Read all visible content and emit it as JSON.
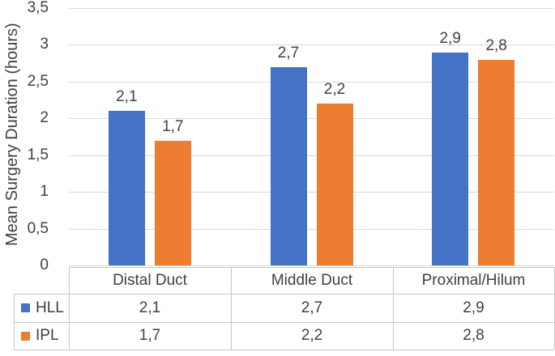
{
  "chart_data": {
    "type": "bar",
    "title": "",
    "xlabel": "",
    "ylabel": "Mean Surgery Duration (hours)",
    "categories": [
      "Distal Duct",
      "Middle Duct",
      "Proximal/Hilum"
    ],
    "series": [
      {
        "name": "HLL",
        "color": "#4472C4",
        "values": [
          2.1,
          2.7,
          2.9
        ]
      },
      {
        "name": "IPL",
        "color": "#ED7D31",
        "values": [
          1.7,
          2.2,
          2.8
        ]
      }
    ],
    "ylim": [
      0,
      3.5
    ],
    "ytick_step": 0.5,
    "ytick_labels": [
      "0",
      "0,5",
      "1",
      "1,5",
      "2",
      "2,5",
      "3",
      "3,5"
    ],
    "data_labels": [
      [
        "2,1",
        "2,7",
        "2,9"
      ],
      [
        "1,7",
        "2,2",
        "2,8"
      ]
    ],
    "decimal_separator": ",",
    "grid": true,
    "legend_position": "data-table-left",
    "data_table": true
  },
  "styles": {
    "series_blue": "#4472C4",
    "series_orange": "#ED7D31",
    "gridline_color": "#D9D9D9",
    "axis_line_color": "#D9D9D9",
    "table_border_color": "#C6C6C6",
    "text_color": "#404040",
    "background": "#FFFFFF"
  }
}
